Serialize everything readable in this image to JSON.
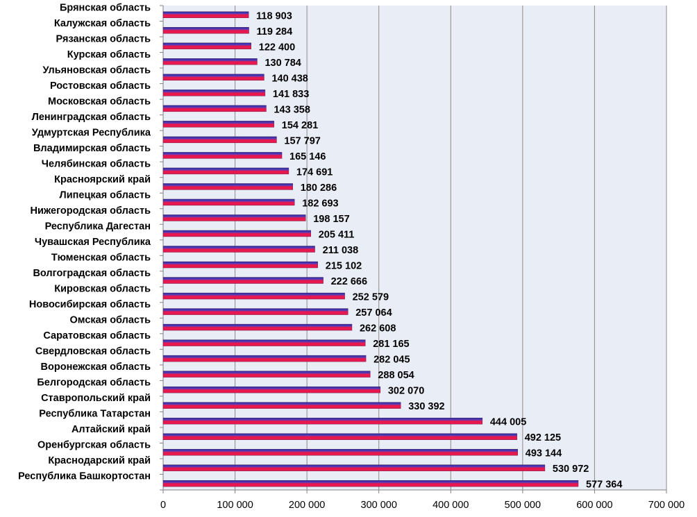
{
  "chart_data": {
    "type": "bar",
    "orientation": "horizontal",
    "categories": [
      "Брянская область",
      "Калужская область",
      "Рязанская область",
      "Курская область",
      "Ульяновская область",
      "Ростовская область",
      "Московская область",
      "Ленинградская область",
      "Удмуртская Республика",
      "Владимирская область",
      "Челябинская область",
      "Красноярский край",
      "Липецкая область",
      "Нижегородская область",
      "Республика Дагестан",
      "Чувашская Республика",
      "Тюменская область",
      "Волгоградская область",
      "Кировская область",
      "Новосибирская область",
      "Омская область",
      "Саратовская область",
      "Свердловская область",
      "Воронежская область",
      "Белгородская область",
      "Ставропольский край",
      "Республика Татарстан",
      "Алтайский край",
      "Оренбургская область",
      "Краснодарский край",
      "Республика Башкортостан"
    ],
    "values": [
      118903,
      119284,
      122400,
      130784,
      140438,
      141833,
      143358,
      154281,
      157797,
      165146,
      174691,
      180286,
      182693,
      198157,
      205411,
      211038,
      215102,
      222666,
      252579,
      257064,
      262608,
      281165,
      282045,
      288054,
      302070,
      330392,
      444005,
      492125,
      493144,
      530972,
      577364
    ],
    "value_labels": [
      "118 903",
      "119 284",
      "122 400",
      "130 784",
      "140 438",
      "141 833",
      "143 358",
      "154 281",
      "157 797",
      "165 146",
      "174 691",
      "180 286",
      "182 693",
      "198 157",
      "205 411",
      "211 038",
      "215 102",
      "222 666",
      "252 579",
      "257 064",
      "262 608",
      "281 165",
      "282 045",
      "288 054",
      "302 070",
      "330 392",
      "444 005",
      "492 125",
      "493 144",
      "530 972",
      "577 364"
    ],
    "x_ticks": [
      0,
      100000,
      200000,
      300000,
      400000,
      500000,
      600000,
      700000
    ],
    "x_tick_labels": [
      "0",
      "100 000",
      "200 000",
      "300 000",
      "400 000",
      "500 000",
      "600 000",
      "700 000"
    ],
    "xlim": [
      0,
      700000
    ],
    "grid": true,
    "legend": false,
    "title": "",
    "xlabel": "",
    "ylabel": "",
    "colors": {
      "plot_background": "#e9edf6",
      "gridline": "#8a8a8a",
      "bar_top": "#1f2ca8",
      "bar_bottom": "#e6184e",
      "axis": "#808080"
    }
  }
}
